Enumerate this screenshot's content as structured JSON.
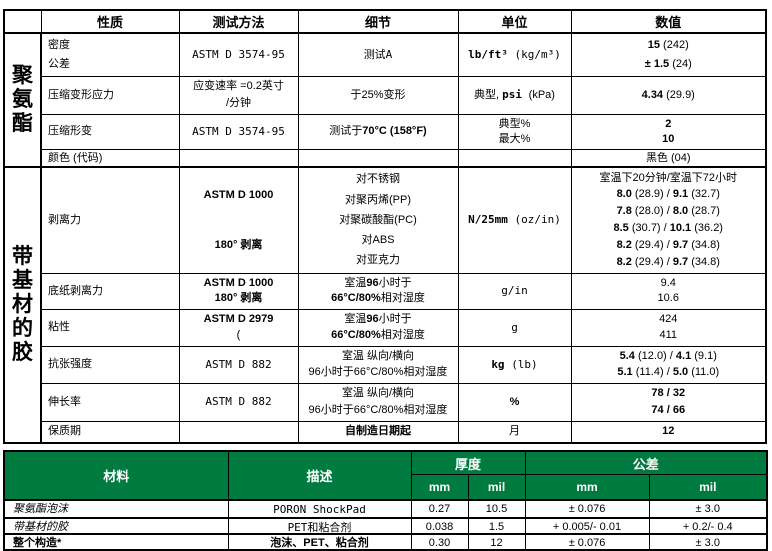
{
  "colors": {
    "table_header_green": "#007B40",
    "border": "#000000",
    "text": "#000000",
    "background": "#ffffff"
  },
  "main_table": {
    "headers": [
      "性质",
      "测试方法",
      "细节",
      "单位",
      "数值"
    ],
    "groups": [
      {
        "label": "聚氨酯",
        "span": 4
      },
      {
        "label": "带基材的胶",
        "span": 6
      }
    ],
    "rows": [
      {
        "cells": [
          [
            "密度",
            "公差"
          ],
          [
            [
              [
                "ASTM D 3574-95",
                "m"
              ]
            ]
          ],
          [
            [
              [
                "测试A",
                "m"
              ]
            ]
          ],
          [
            [
              [
                "lb/ft³ ",
                "b m"
              ],
              [
                "(kg/m³)",
                "m"
              ]
            ]
          ],
          [
            [
              [
                "15 ",
                "b"
              ],
              [
                "(242)",
                ""
              ]
            ],
            [
              [
                "± 1.5 ",
                "b"
              ],
              [
                "(24)",
                ""
              ]
            ]
          ]
        ]
      },
      {
        "cells": [
          [
            "压缩变形应力"
          ],
          [
            "应变速率 =0.2英寸",
            "/分钟"
          ],
          [
            "于25%变形"
          ],
          [
            [
              [
                "典型, ",
                ""
              ],
              [
                "psi ",
                "b m"
              ],
              [
                "(kPa)",
                ""
              ]
            ]
          ],
          [
            [
              [
                "4.34 ",
                "b"
              ],
              [
                "(29.9)",
                ""
              ]
            ]
          ]
        ]
      },
      {
        "cells": [
          [
            "压缩形变"
          ],
          [
            [
              [
                "ASTM D 3574-95",
                "m"
              ]
            ]
          ],
          [
            [
              [
                "测试于",
                ""
              ],
              [
                "70°C (158°F)",
                "b"
              ]
            ]
          ],
          [
            "典型%",
            "最大%"
          ],
          [
            [
              [
                "2",
                "b"
              ]
            ],
            [
              [
                "10",
                "b"
              ]
            ]
          ]
        ]
      },
      {
        "cells": [
          [
            "颜色 (代码)"
          ],
          [],
          [],
          [],
          [
            "黑色 (04)"
          ]
        ]
      },
      {
        "cells": [
          [
            "剥离力"
          ],
          [
            [
              [
                "ASTM D 1000",
                "b"
              ]
            ],
            [
              [
                "180° 剥离",
                "b"
              ]
            ]
          ],
          [
            "对不锈钢",
            "对聚丙烯(PP)",
            "对聚碳酸酯(PC)",
            "对ABS",
            "对亚克力"
          ],
          [
            [
              [
                "N/25mm ",
                "b m"
              ],
              [
                "(oz/in)",
                "m"
              ]
            ]
          ],
          [
            "室温下20分钟/室温下72小时",
            [
              [
                "8.0 ",
                "b"
              ],
              [
                "(28.9) / ",
                ""
              ],
              [
                "9.1 ",
                "b"
              ],
              [
                "(32.7)",
                ""
              ]
            ],
            [
              [
                "7.8 ",
                "b"
              ],
              [
                "(28.0) / ",
                ""
              ],
              [
                "8.0 ",
                "b"
              ],
              [
                "(28.7)",
                ""
              ]
            ],
            [
              [
                "8.5 ",
                "b"
              ],
              [
                "(30.7) / ",
                ""
              ],
              [
                "10.1 ",
                "b"
              ],
              [
                "(36.2)",
                ""
              ]
            ],
            [
              [
                "8.2 ",
                "b"
              ],
              [
                "(29.4) / ",
                ""
              ],
              [
                "9.7 ",
                "b"
              ],
              [
                "(34.8)",
                ""
              ]
            ],
            [
              [
                "8.2 ",
                "b"
              ],
              [
                "(29.4) / ",
                ""
              ],
              [
                "9.7 ",
                "b"
              ],
              [
                "(34.8)",
                ""
              ]
            ]
          ]
        ]
      },
      {
        "cells": [
          [
            "底纸剥离力"
          ],
          [
            [
              [
                "ASTM D 1000",
                "b"
              ]
            ],
            [
              [
                "180° 剥离",
                "b"
              ]
            ]
          ],
          [
            [
              [
                "室温",
                ""
              ],
              [
                "96",
                "b"
              ],
              [
                "小时于",
                ""
              ]
            ],
            [
              [
                "66°C/80%",
                "b"
              ],
              [
                "相对湿度",
                ""
              ]
            ]
          ],
          [
            [
              [
                "g/in",
                "m"
              ]
            ]
          ],
          [
            "9.4",
            "10.6"
          ]
        ]
      },
      {
        "cells": [
          [
            "粘性"
          ],
          [
            [
              [
                "ASTM D 2979",
                "b"
              ]
            ],
            [
              "(1秒停留)"
            ]
          ],
          [
            [
              [
                "室温",
                ""
              ],
              [
                "96",
                "b"
              ],
              [
                "小时于",
                ""
              ]
            ],
            [
              [
                "66°C/80%",
                "b"
              ],
              [
                "相对湿度",
                ""
              ]
            ]
          ],
          [
            [
              [
                "g",
                "m"
              ]
            ]
          ],
          [
            "424",
            "411"
          ]
        ]
      },
      {
        "cells": [
          [
            "抗张强度"
          ],
          [
            [
              [
                "ASTM D 882",
                "m"
              ]
            ]
          ],
          [
            "室温 纵向/横向",
            "96小时于66°C/80%相对湿度"
          ],
          [
            [
              [
                "kg ",
                "b m"
              ],
              [
                "(lb)",
                "m"
              ]
            ]
          ],
          [
            [
              [
                "5.4 ",
                "b"
              ],
              [
                "(12.0) / ",
                ""
              ],
              [
                "4.1 ",
                "b"
              ],
              [
                "(9.1)",
                ""
              ]
            ],
            [
              [
                "5.1 ",
                "b"
              ],
              [
                "(11.4) / ",
                ""
              ],
              [
                "5.0 ",
                "b"
              ],
              [
                "(11.0)",
                ""
              ]
            ]
          ]
        ]
      },
      {
        "cells": [
          [
            "伸长率"
          ],
          [
            [
              [
                "ASTM D 882",
                "m"
              ]
            ]
          ],
          [
            "室温 纵向/横向",
            "96小时于66°C/80%相对湿度"
          ],
          [
            [
              [
                "%",
                "b"
              ]
            ]
          ],
          [
            [
              [
                "78 / 32",
                "b"
              ]
            ],
            [
              [
                "74 / 66",
                "b"
              ]
            ]
          ]
        ]
      },
      {
        "cells": [
          [
            "保质期"
          ],
          [],
          [
            [
              [
                "自制造日期起",
                "b"
              ]
            ]
          ],
          [
            "月"
          ],
          [
            [
              [
                "12",
                "b"
              ]
            ]
          ]
        ]
      }
    ]
  },
  "materials_table": {
    "headers": {
      "material": "材料",
      "description": "描述",
      "thickness": "厚度",
      "tolerance": "公差"
    },
    "sub_headers": [
      "mm",
      "mil",
      "mm",
      "mil"
    ],
    "rows": [
      {
        "cells": [
          [
            [
              [
                "聚氨酯泡沫",
                "i"
              ]
            ]
          ],
          [
            [
              [
                "PORON ShockPad",
                "m"
              ]
            ]
          ],
          [
            "0.27"
          ],
          [
            "10.5"
          ],
          [
            "± 0.076"
          ],
          [
            "± 3.0"
          ]
        ]
      },
      {
        "cells": [
          [
            [
              [
                "带基材的胶",
                "i"
              ]
            ]
          ],
          [
            [
              [
                "PET和粘合剂",
                "m"
              ]
            ]
          ],
          [
            "0.038"
          ],
          [
            "1.5"
          ],
          [
            "+ 0.005/- 0.01"
          ],
          [
            "+ 0.2/- 0.4"
          ]
        ]
      },
      {
        "cells": [
          [
            [
              [
                "整个构造*",
                "b"
              ]
            ]
          ],
          [
            [
              [
                "泡沫、PET、粘合剂",
                "b"
              ]
            ]
          ],
          [
            "0.30"
          ],
          [
            "12"
          ],
          [
            "± 0.076"
          ],
          [
            "± 3.0"
          ]
        ]
      }
    ]
  }
}
